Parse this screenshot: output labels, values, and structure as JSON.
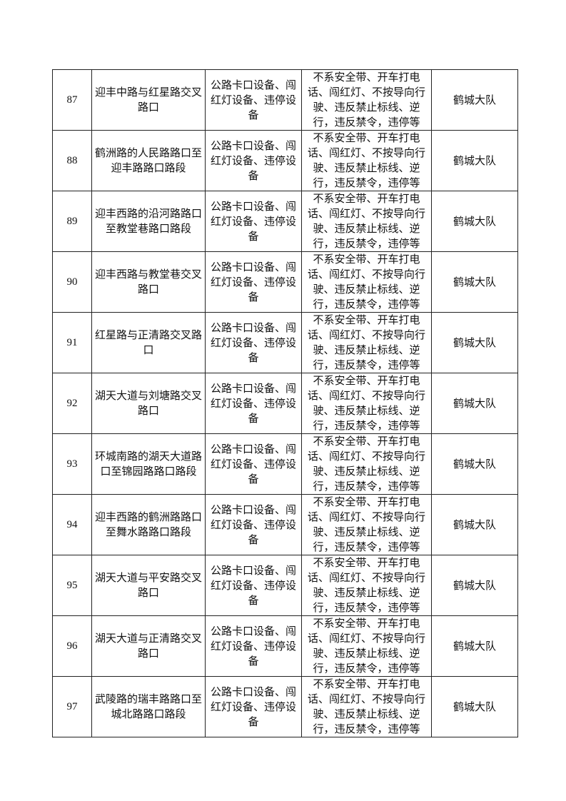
{
  "rows": [
    {
      "no": "87",
      "location": "迎丰中路与红星路交叉路口",
      "equipment": "公路卡口设备、闯红灯设备、违停设备",
      "violations": "不系安全带、开车打电话、闯红灯、不按导向行驶、违反禁止标线、逆行，违反禁令，违停等",
      "unit": "鹤城大队"
    },
    {
      "no": "88",
      "location": "鹤洲路的人民路路口至迎丰路路口路段",
      "equipment": "公路卡口设备、闯红灯设备、违停设备",
      "violations": "不系安全带、开车打电话、闯红灯、不按导向行驶、违反禁止标线、逆行，违反禁令，违停等",
      "unit": "鹤城大队"
    },
    {
      "no": "89",
      "location": "迎丰西路的沿河路路口至教堂巷路口路段",
      "equipment": "公路卡口设备、闯红灯设备、违停设备",
      "violations": "不系安全带、开车打电话、闯红灯、不按导向行驶、违反禁止标线、逆行，违反禁令，违停等",
      "unit": "鹤城大队"
    },
    {
      "no": "90",
      "location": "迎丰西路与教堂巷交叉路口",
      "equipment": "公路卡口设备、闯红灯设备、违停设备",
      "violations": "不系安全带、开车打电话、闯红灯、不按导向行驶、违反禁止标线、逆行，违反禁令，违停等",
      "unit": "鹤城大队"
    },
    {
      "no": "91",
      "location": "红星路与正清路交叉路口",
      "equipment": "公路卡口设备、闯红灯设备、违停设备",
      "violations": "不系安全带、开车打电话、闯红灯、不按导向行驶、违反禁止标线、逆行，违反禁令，违停等",
      "unit": "鹤城大队"
    },
    {
      "no": "92",
      "location": "湖天大道与刘塘路交叉路口",
      "equipment": "公路卡口设备、闯红灯设备、违停设备",
      "violations": "不系安全带、开车打电话、闯红灯、不按导向行驶、违反禁止标线、逆行，违反禁令，违停等",
      "unit": "鹤城大队"
    },
    {
      "no": "93",
      "location": "环城南路的湖天大道路口至锦园路路口路段",
      "equipment": "公路卡口设备、闯红灯设备、违停设备",
      "violations": "不系安全带、开车打电话、闯红灯、不按导向行驶、违反禁止标线、逆行，违反禁令，违停等",
      "unit": "鹤城大队"
    },
    {
      "no": "94",
      "location": "迎丰西路的鹤洲路路口至舞水路路口路段",
      "equipment": "公路卡口设备、闯红灯设备、违停设备",
      "violations": "不系安全带、开车打电话、闯红灯、不按导向行驶、违反禁止标线、逆行，违反禁令，违停等",
      "unit": "鹤城大队"
    },
    {
      "no": "95",
      "location": "湖天大道与平安路交叉路口",
      "equipment": "公路卡口设备、闯红灯设备、违停设备",
      "violations": "不系安全带、开车打电话、闯红灯、不按导向行驶、违反禁止标线、逆行，违反禁令，违停等",
      "unit": "鹤城大队"
    },
    {
      "no": "96",
      "location": "湖天大道与正清路交叉路口",
      "equipment": "公路卡口设备、闯红灯设备、违停设备",
      "violations": "不系安全带、开车打电话、闯红灯、不按导向行驶、违反禁止标线、逆行，违反禁令，违停等",
      "unit": "鹤城大队"
    },
    {
      "no": "97",
      "location": "武陵路的瑞丰路路口至城北路路口路段",
      "equipment": "公路卡口设备、闯红灯设备、违停设备",
      "violations": "不系安全带、开车打电话、闯红灯、不按导向行驶、违反禁止标线、逆行，违反禁令，违停等",
      "unit": "鹤城大队"
    }
  ]
}
